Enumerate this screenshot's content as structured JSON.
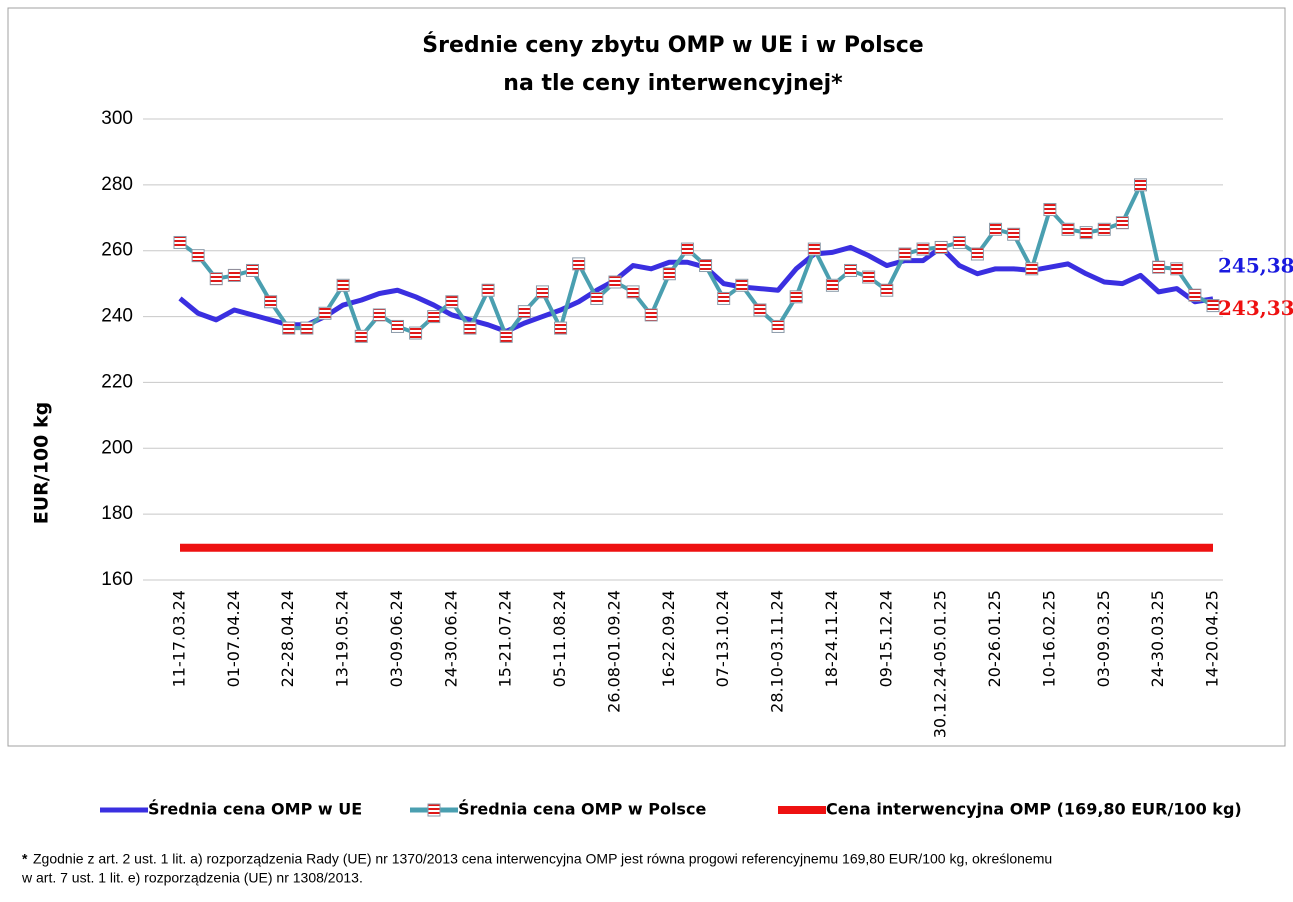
{
  "chart_data": {
    "type": "line",
    "title": "Średnie ceny zbytu OMP w UE i w Polsce",
    "subtitle": "na tle ceny interwencyjnej*",
    "y_label": "EUR/100 kg",
    "categories": [
      "11-17.03.24",
      null,
      null,
      "01-07.04.24",
      null,
      null,
      "22-28.04.24",
      null,
      null,
      "13-19.05.24",
      null,
      null,
      "03-09.06.24",
      null,
      null,
      "24-30.06.24",
      null,
      null,
      "15-21.07.24",
      null,
      null,
      "05-11.08.24",
      null,
      null,
      "26.08-01.09.24",
      null,
      null,
      "16-22.09.24",
      null,
      null,
      "07-13.10.24",
      null,
      null,
      "28.10-03.11.24",
      null,
      null,
      "18-24.11.24",
      null,
      null,
      "09-15.12.24",
      null,
      null,
      "30.12.24-05.01.25",
      null,
      null,
      "20-26.01.25",
      null,
      null,
      "10-16.02.25",
      null,
      null,
      "03-09.03.25",
      null,
      null,
      "24-30.03.25",
      null,
      null,
      "14-20.04.25"
    ],
    "ylim": [
      160,
      300
    ],
    "yticks": [
      160,
      180,
      200,
      220,
      240,
      260,
      280,
      300
    ],
    "grid": true,
    "legend": "bottom",
    "series": [
      {
        "name": "Średnia cena OMP w UE",
        "color": "#3a2fe0",
        "marker": false,
        "values": [
          245.5,
          241,
          239,
          242,
          240.5,
          239,
          237.5,
          237.5,
          240,
          243.5,
          245,
          247,
          248,
          246,
          243.5,
          240.5,
          239,
          237.5,
          235.5,
          238,
          240,
          242,
          244.5,
          248,
          251,
          255.5,
          254.5,
          256.5,
          256.5,
          255,
          250,
          249,
          248.5,
          248,
          254.5,
          259,
          259.5,
          261,
          258.5,
          255.5,
          257,
          257,
          261,
          255.5,
          253,
          254.5,
          254.5,
          254,
          255,
          256,
          253,
          250.5,
          250,
          252.5,
          247.5,
          248.5,
          244.5,
          245.38
        ],
        "value_labels": [
          null,
          null,
          null,
          null,
          null,
          null,
          null,
          null,
          null,
          null,
          null,
          null,
          null,
          null,
          null,
          null,
          null,
          null,
          null,
          null,
          null,
          null,
          null,
          null,
          null,
          null,
          null,
          null,
          null,
          null,
          null,
          null,
          null,
          null,
          null,
          null,
          null,
          null,
          null,
          null,
          null,
          null,
          null,
          null,
          null,
          null,
          null,
          null,
          null,
          null,
          null,
          null,
          null,
          null,
          null,
          null,
          null,
          "245,38"
        ],
        "label_color": "#1a1adf"
      },
      {
        "name": "Średnia cena OMP w Polsce",
        "color": "#4a9fb0",
        "marker": true,
        "values": [
          262.5,
          258.5,
          251.5,
          252.5,
          254,
          244.5,
          236.5,
          236.5,
          241,
          249.5,
          234,
          240.5,
          237,
          235,
          240,
          244.5,
          236.5,
          248,
          234,
          241.5,
          247.5,
          236.5,
          256,
          245.5,
          250.5,
          247.5,
          240.5,
          253,
          260.5,
          255.5,
          245.5,
          249.5,
          242,
          237,
          246,
          260.5,
          249.5,
          254,
          252,
          248,
          259,
          260.5,
          261,
          262.5,
          259,
          266.5,
          265,
          254.5,
          272.5,
          266.5,
          265.5,
          266.5,
          268.5,
          280,
          255,
          254.5,
          246.5,
          243.33
        ],
        "value_labels": [
          null,
          null,
          null,
          null,
          null,
          null,
          null,
          null,
          null,
          null,
          null,
          null,
          null,
          null,
          null,
          null,
          null,
          null,
          null,
          null,
          null,
          null,
          null,
          null,
          null,
          null,
          null,
          null,
          null,
          null,
          null,
          null,
          null,
          null,
          null,
          null,
          null,
          null,
          null,
          null,
          null,
          null,
          null,
          null,
          null,
          null,
          null,
          null,
          null,
          null,
          null,
          null,
          null,
          null,
          null,
          null,
          null,
          "243,33"
        ],
        "label_color": "#ee1111"
      },
      {
        "name": "Cena interwencyjna OMP (169,80 EUR/100 kg)",
        "color": "#ee1111",
        "marker": false,
        "values": [
          169.8,
          169.8,
          169.8,
          169.8,
          169.8,
          169.8,
          169.8,
          169.8,
          169.8,
          169.8,
          169.8,
          169.8,
          169.8,
          169.8,
          169.8,
          169.8,
          169.8,
          169.8,
          169.8,
          169.8,
          169.8,
          169.8,
          169.8,
          169.8,
          169.8,
          169.8,
          169.8,
          169.8,
          169.8,
          169.8,
          169.8,
          169.8,
          169.8,
          169.8,
          169.8,
          169.8,
          169.8,
          169.8,
          169.8,
          169.8,
          169.8,
          169.8,
          169.8,
          169.8,
          169.8,
          169.8,
          169.8,
          169.8,
          169.8,
          169.8,
          169.8,
          169.8,
          169.8,
          169.8,
          169.8,
          169.8,
          169.8,
          169.8
        ]
      }
    ]
  },
  "footnote": {
    "mark": "*",
    "lines": [
      "Zgodnie z art. 2 ust. 1 lit. a)  rozporządzenia Rady (UE) nr 1370/2013 cena interwencyjna OMP jest równa progowi referencyjnemu 169,80 EUR/100 kg, określonemu",
      "w art. 7 ust. 1 lit. e) rozporządzenia (UE) nr 1308/2013."
    ]
  }
}
